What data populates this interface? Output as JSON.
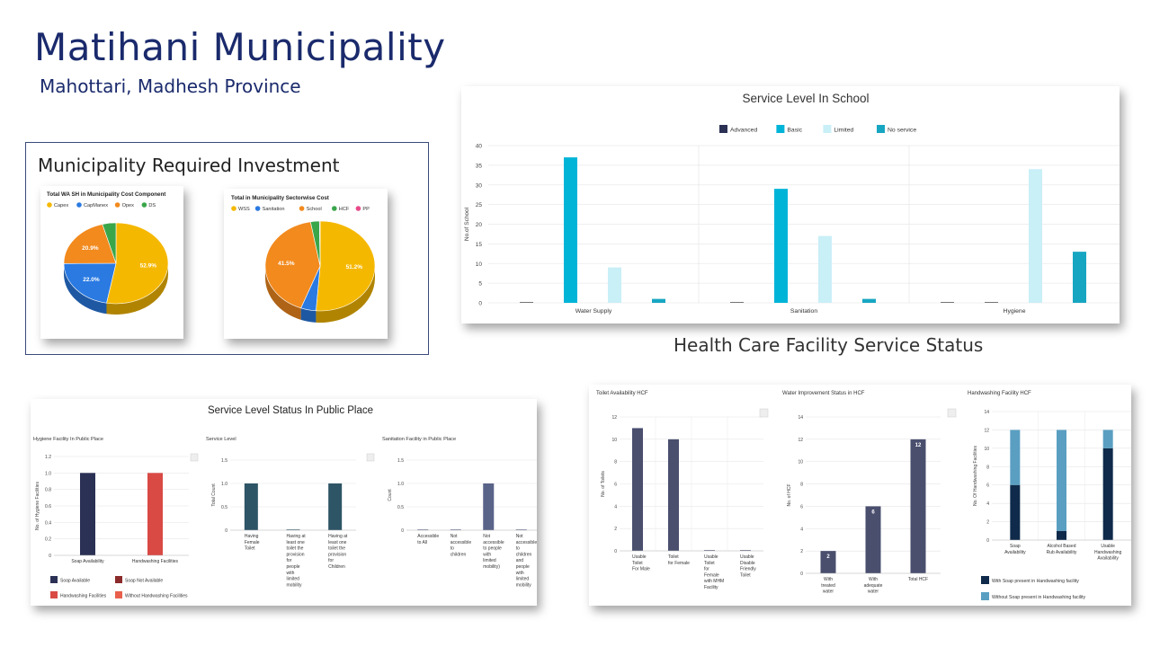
{
  "page": {
    "title": "Matihani Municipality",
    "subtitle": "Mahottari, Madhesh Province",
    "investment_heading": "Municipality Required Investment",
    "hcf_heading": "Health Care Facility Service Status",
    "public_place_heading": "Service Level Status In Public Place"
  },
  "colors": {
    "title": "#1a2a6c",
    "yellow": "#f5b800",
    "blue": "#2a7ae2",
    "orange": "#f28a1e",
    "green": "#3aa64a",
    "cyan": "#00b4d8",
    "lightcyan": "#c9eff7",
    "darknavy": "#2b3155",
    "teal": "#17a6c2"
  },
  "chart_data": [
    {
      "id": "wash-cost",
      "type": "pie",
      "title": "Total WA SH in Municipality Cost Component",
      "labels": [
        "Capex",
        "CapManex",
        "Opex",
        "DS"
      ],
      "values": [
        52.9,
        22.0,
        20.9,
        4.2
      ],
      "slice_labels": [
        "52.9%",
        "22.0%",
        "20.9%",
        ""
      ],
      "colors": [
        "#f5b800",
        "#2a7ae2",
        "#f28a1e",
        "#3aa64a"
      ]
    },
    {
      "id": "sector-cost",
      "type": "pie",
      "title": "Total in Municipality Sectorwise Cost",
      "labels": [
        "WSS",
        "Sanitation",
        "School",
        "HCF",
        "PP"
      ],
      "values": [
        51.2,
        4.5,
        41.5,
        2.6,
        0.2
      ],
      "slice_labels": [
        "51.2%",
        "",
        "41.5%",
        "",
        ""
      ],
      "colors": [
        "#f5b800",
        "#2a7ae2",
        "#f28a1e",
        "#3aa64a",
        "#e84a8a"
      ]
    },
    {
      "id": "school",
      "type": "bar",
      "title": "Service Level In School",
      "ylabel": "No.of School",
      "categories": [
        "Water Supply",
        "Sanitation",
        "Hygiene"
      ],
      "ylim": [
        0,
        40
      ],
      "yticks": [
        "0",
        "5",
        "10",
        "15",
        "20",
        "25",
        "30",
        "35",
        "40"
      ],
      "series": [
        {
          "name": "Advanced",
          "values": [
            0,
            0,
            0
          ],
          "color": "#2b3155"
        },
        {
          "name": "Basic",
          "values": [
            37,
            29,
            0
          ],
          "color": "#00b4d8"
        },
        {
          "name": "Limited",
          "values": [
            9,
            17,
            34
          ],
          "color": "#c9eff7"
        },
        {
          "name": "No service",
          "values": [
            1,
            1,
            13
          ],
          "color": "#17a6c2"
        }
      ]
    },
    {
      "id": "pp-hygiene",
      "type": "bar",
      "title": "Hygiene Facility In Public Place",
      "ylabel": "No. of Hygiene Facilities",
      "categories": [
        "Soap Availability",
        "Handwashing Facilities"
      ],
      "values": [
        1,
        1
      ],
      "colors": [
        "#2b3155",
        "#d94a45"
      ],
      "ylim": [
        0,
        1.2
      ],
      "yticks": [
        "0",
        "0.2",
        "0.4",
        "0.6",
        "0.8",
        "1.0",
        "1.2"
      ],
      "legend": [
        {
          "name": "Soap Available",
          "color": "#2b3155"
        },
        {
          "name": "Soap Not Available",
          "color": "#8b2a2a"
        },
        {
          "name": "Handwashing Facilities",
          "color": "#d94a45"
        },
        {
          "name": "Without Handwashing Facilities",
          "color": "#e8604c"
        }
      ]
    },
    {
      "id": "pp-service",
      "type": "bar",
      "title": "Service Level",
      "ylabel": "Total Count",
      "categories": [
        [
          "Having",
          "Female",
          "Toilet"
        ],
        [
          "Having at",
          "least one",
          "toilet the",
          "provision",
          "for",
          "people",
          "with",
          "limited",
          "mobility"
        ],
        [
          "Having at",
          "least one",
          "toilet the",
          "provision",
          "for",
          "Children"
        ]
      ],
      "values": [
        1,
        0,
        1
      ],
      "color": "#2e5566",
      "ylim": [
        0,
        1.5
      ],
      "yticks": [
        "0",
        "0.5",
        "1.0",
        "1.5"
      ]
    },
    {
      "id": "pp-sanitation",
      "type": "bar",
      "title": "Sanitation Facility in Public Place",
      "ylabel": "Count",
      "categories": [
        [
          "Accessible",
          "to All"
        ],
        [
          "Not",
          "accessible",
          "to",
          "children"
        ],
        [
          "Not",
          "accessible",
          "to people",
          "with",
          "limited",
          "mobility)"
        ],
        [
          "Not",
          "accessible",
          "to",
          "children",
          "and",
          "people",
          "with",
          "limited",
          "mobility"
        ]
      ],
      "values": [
        0,
        0,
        1,
        0
      ],
      "color": "#5a6388",
      "ylim": [
        0,
        1.5
      ],
      "yticks": [
        "0",
        "0.5",
        "1.0",
        "1.5"
      ]
    },
    {
      "id": "hcf-toilet",
      "type": "bar",
      "title": "Toilet Availability HCF",
      "ylabel": "No. of Toilets",
      "categories": [
        [
          "Usable",
          "Toilet",
          "For Male"
        ],
        [
          "Toilet",
          "for Female"
        ],
        [
          "Usable",
          "Toilet",
          "for",
          "Female",
          "with MHM",
          "Facility"
        ],
        [
          "Usable",
          "Disable",
          "Friendly",
          "Toilet"
        ]
      ],
      "values": [
        11,
        10,
        0,
        0
      ],
      "color": "#4a4f6e",
      "ylim": [
        0,
        12
      ],
      "yticks": [
        "0",
        "2",
        "4",
        "6",
        "8",
        "10",
        "12"
      ]
    },
    {
      "id": "hcf-water",
      "type": "bar",
      "title": "Water Improvement Status in HCF",
      "ylabel": "No. of HCF",
      "categories": [
        [
          "With",
          "treated",
          "water"
        ],
        [
          "With",
          "adequate",
          "water"
        ],
        [
          "Total HCF"
        ]
      ],
      "values": [
        2,
        6,
        12
      ],
      "data_labels": [
        "2",
        "6",
        "12"
      ],
      "color": "#4a4f6e",
      "ylim": [
        0,
        14
      ],
      "yticks": [
        "0",
        "2",
        "4",
        "6",
        "8",
        "10",
        "12",
        "14"
      ]
    },
    {
      "id": "hcf-handwash",
      "type": "bar",
      "stacked": true,
      "title": "Handwashing Facility HCF",
      "ylabel": "No. Of Handwashing Facilities",
      "categories": [
        [
          "Soap",
          "Availability"
        ],
        [
          "Alcohol Based",
          "Rub Availability"
        ],
        [
          "Usable",
          "Handwashing",
          "Availability"
        ]
      ],
      "series": [
        {
          "name": "With Soap present in Handwashing facility",
          "values": [
            6,
            1,
            10
          ],
          "color": "#0f2a4a"
        },
        {
          "name": "Without Soap present in Handwashing facility",
          "values": [
            6,
            11,
            2
          ],
          "color": "#5a9fc2"
        }
      ],
      "ylim": [
        0,
        14
      ],
      "yticks": [
        "0",
        "2",
        "4",
        "6",
        "8",
        "10",
        "12",
        "14"
      ]
    }
  ]
}
